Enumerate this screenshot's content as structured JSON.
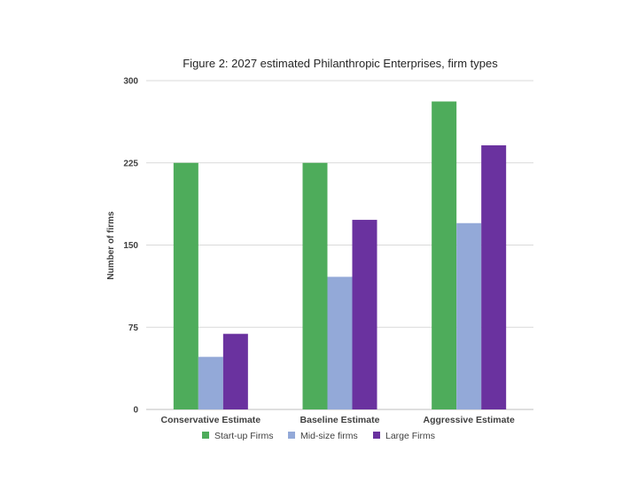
{
  "chart_data": {
    "type": "bar",
    "title": "Figure 2:  2027 estimated Philanthropic Enterprises, firm types",
    "xlabel": "",
    "ylabel": "Number of firms",
    "ylim": [
      0,
      300
    ],
    "yticks": [
      0,
      75,
      150,
      225,
      300
    ],
    "grid": true,
    "legend": "bottom",
    "categories": [
      "Conservative Estimate",
      "Baseline Estimate",
      "Aggressive Estimate"
    ],
    "series": [
      {
        "name": "Start-up Firms",
        "color": "#4eac5b",
        "values": [
          225,
          225,
          281
        ]
      },
      {
        "name": "Mid-size firms",
        "color": "#93a9d8",
        "values": [
          48,
          121,
          170
        ]
      },
      {
        "name": "Large Firms",
        "color": "#6a329f",
        "values": [
          69,
          173,
          241
        ]
      }
    ]
  }
}
